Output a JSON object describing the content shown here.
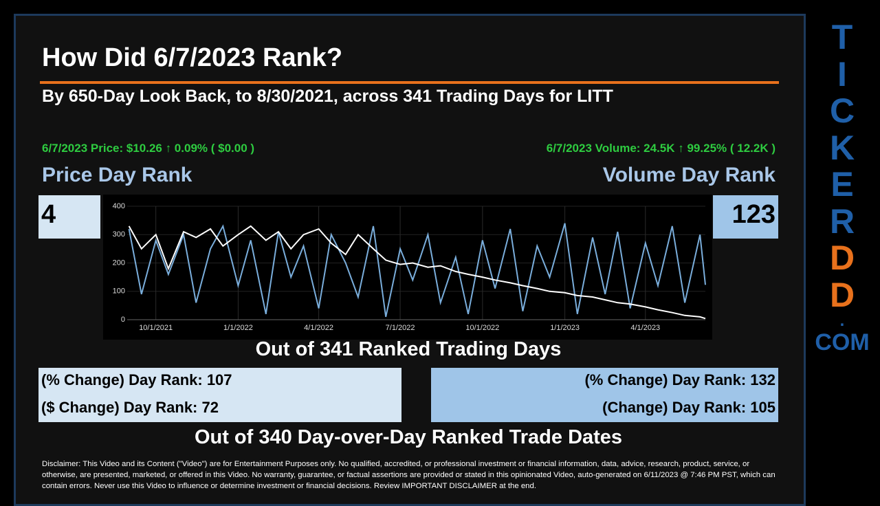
{
  "title": "How Did 6/7/2023 Rank?",
  "subtitle": "By 650-Day Look Back, to 8/30/2021, across 341 Trading Days for LITT",
  "price_summary": "6/7/2023 Price: $10.26 ↑ 0.09% ( $0.00 )",
  "volume_summary": "6/7/2023 Volume: 24.5K ↑ 99.25% ( 12.2K )",
  "price_rank_label": "Price Day Rank",
  "volume_rank_label": "Volume Day Rank",
  "price_rank": 4,
  "volume_rank": 123,
  "chart_caption": "Out of 341 Ranked Trading Days",
  "price_stats": [
    "(% Change) Day Rank: 107",
    "($ Change) Day Rank: 72"
  ],
  "volume_stats": [
    "(% Change) Day Rank: 132",
    "(Change) Day Rank: 105"
  ],
  "stats_caption": "Out of 340 Day-over-Day Ranked Trade Dates",
  "disclaimer": "Disclaimer: This Video and its Content (\"Video\") are for Entertainment Purposes only. No qualified, accredited, or professional investment or financial information, data, advice, research, product, service, or otherwise, are presented, marketed, or offered in this Video. No warranty, guarantee, or factual assertions are provided or stated in this opinionated Video, auto-generated on 6/11/2023 @ 7:46 PM PST, which can contain errors. Never use this Video to influence or determine investment or financial decisions. Review IMPORTANT DISCLAIMER at the end.",
  "brand": [
    "T",
    "I",
    "C",
    "K",
    "E",
    "R",
    "D",
    "D",
    ".",
    "COM"
  ],
  "chart_data": {
    "type": "line",
    "x": [
      "9/1/2021",
      "9/15/2021",
      "10/1/2021",
      "10/15/2021",
      "11/1/2021",
      "11/15/2021",
      "12/1/2021",
      "12/15/2021",
      "1/1/2022",
      "1/15/2022",
      "2/1/2022",
      "2/15/2022",
      "3/1/2022",
      "3/15/2022",
      "4/1/2022",
      "4/15/2022",
      "5/1/2022",
      "5/15/2022",
      "6/1/2022",
      "6/15/2022",
      "7/1/2022",
      "7/15/2022",
      "8/1/2022",
      "8/15/2022",
      "9/1/2022",
      "9/15/2022",
      "10/1/2022",
      "10/15/2022",
      "11/1/2022",
      "11/15/2022",
      "12/1/2022",
      "12/15/2022",
      "1/1/2023",
      "1/15/2023",
      "2/1/2023",
      "2/15/2023",
      "3/1/2023",
      "3/15/2023",
      "4/1/2023",
      "4/15/2023",
      "5/1/2023",
      "5/15/2023",
      "6/1/2023",
      "6/7/2023"
    ],
    "series": [
      {
        "color": "#7aaedc",
        "values": [
          320,
          90,
          280,
          160,
          300,
          60,
          250,
          330,
          120,
          280,
          20,
          310,
          150,
          260,
          40,
          300,
          200,
          80,
          330,
          10,
          250,
          140,
          300,
          60,
          220,
          20,
          280,
          110,
          320,
          30,
          260,
          150,
          340,
          20,
          290,
          90,
          310,
          40,
          270,
          120,
          330,
          60,
          300,
          123
        ]
      },
      {
        "color": "#ffffff",
        "values": [
          330,
          250,
          300,
          180,
          310,
          290,
          320,
          260,
          300,
          330,
          280,
          310,
          250,
          300,
          320,
          270,
          230,
          300,
          250,
          210,
          195,
          200,
          185,
          190,
          170,
          160,
          150,
          140,
          130,
          120,
          110,
          100,
          95,
          85,
          80,
          70,
          60,
          55,
          45,
          35,
          25,
          15,
          10,
          4
        ]
      }
    ],
    "xlim": [
      "8/30/2021",
      "6/7/2023"
    ],
    "xticks": [
      "10/1/2021",
      "1/1/2022",
      "4/1/2022",
      "7/1/2022",
      "10/1/2022",
      "1/1/2023",
      "4/1/2023"
    ],
    "ylim": [
      0,
      400
    ],
    "yticks": [
      0,
      100,
      200,
      300,
      400
    ],
    "grid": true
  }
}
